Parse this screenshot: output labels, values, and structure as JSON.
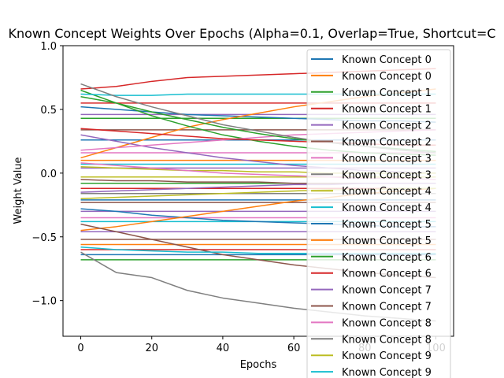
{
  "chart_data": {
    "type": "line",
    "title": "Known Concept Weights Over Epochs (Alpha=0.1, Overlap=True, Shortcut=C",
    "xlabel": "Epochs",
    "ylabel": "Weight Value",
    "xlim": [
      -5,
      105
    ],
    "ylim": [
      -1.28,
      1.0
    ],
    "xticks": [
      0,
      20,
      40,
      60,
      80,
      100
    ],
    "yticks": [
      -1.0,
      -0.5,
      0.0,
      0.5,
      1.0
    ],
    "ytick_labels": [
      "−1.0",
      "−0.5",
      "0.0",
      "0.5",
      "1.0"
    ],
    "grid": false,
    "legend_position": "top-right",
    "x": [
      0,
      10,
      20,
      30,
      40,
      50,
      60,
      70,
      80,
      90,
      100
    ],
    "series": [
      {
        "name": "Known Concept 0",
        "color": "#1f77b4",
        "values": [
          0.52,
          0.5,
          0.48,
          0.46,
          0.45,
          0.44,
          0.43,
          0.42,
          0.41,
          0.41,
          0.4
        ]
      },
      {
        "name": "Known Concept 0",
        "color": "#ff7f0e",
        "values": [
          0.12,
          0.2,
          0.28,
          0.36,
          0.42,
          0.47,
          0.52,
          0.56,
          0.6,
          0.63,
          0.66
        ]
      },
      {
        "name": "Known Concept 1",
        "color": "#2ca02c",
        "values": [
          0.65,
          0.55,
          0.45,
          0.37,
          0.3,
          0.25,
          0.21,
          0.18,
          0.16,
          0.15,
          0.14
        ]
      },
      {
        "name": "Known Concept 1",
        "color": "#d62728",
        "values": [
          0.66,
          0.68,
          0.72,
          0.75,
          0.76,
          0.77,
          0.78,
          0.79,
          0.8,
          0.81,
          0.82
        ]
      },
      {
        "name": "Known Concept 2",
        "color": "#9467bd",
        "values": [
          0.3,
          0.25,
          0.2,
          0.16,
          0.12,
          0.09,
          0.06,
          0.04,
          0.02,
          0.01,
          0.0
        ]
      },
      {
        "name": "Known Concept 2",
        "color": "#8c564b",
        "values": [
          -0.05,
          -0.06,
          -0.06,
          -0.07,
          -0.07,
          -0.07,
          -0.08,
          -0.08,
          -0.08,
          -0.08,
          -0.08
        ]
      },
      {
        "name": "Known Concept 3",
        "color": "#e377c2",
        "values": [
          0.18,
          0.2,
          0.22,
          0.24,
          0.26,
          0.28,
          0.3,
          0.31,
          0.32,
          0.33,
          0.34
        ]
      },
      {
        "name": "Known Concept 3",
        "color": "#7f7f7f",
        "values": [
          -0.62,
          -0.78,
          -0.82,
          -0.92,
          -0.98,
          -1.02,
          -1.06,
          -1.09,
          -1.12,
          -1.14,
          -1.16
        ]
      },
      {
        "name": "Known Concept 4",
        "color": "#bcbd22",
        "values": [
          0.05,
          0.04,
          0.03,
          0.02,
          0.02,
          0.01,
          0.01,
          0.0,
          0.0,
          0.0,
          0.0
        ]
      },
      {
        "name": "Known Concept 4",
        "color": "#17becf",
        "values": [
          0.62,
          0.61,
          0.61,
          0.62,
          0.62,
          0.62,
          0.62,
          0.62,
          0.62,
          0.62,
          0.62
        ]
      },
      {
        "name": "Known Concept 5",
        "color": "#1f77b4",
        "values": [
          -0.28,
          -0.3,
          -0.33,
          -0.35,
          -0.37,
          -0.38,
          -0.39,
          -0.4,
          -0.41,
          -0.42,
          -0.42
        ]
      },
      {
        "name": "Known Concept 5",
        "color": "#ff7f0e",
        "values": [
          -0.45,
          -0.42,
          -0.38,
          -0.34,
          -0.3,
          -0.26,
          -0.22,
          -0.19,
          -0.16,
          -0.14,
          -0.12
        ]
      },
      {
        "name": "Known Concept 6",
        "color": "#2ca02c",
        "values": [
          0.6,
          0.55,
          0.48,
          0.42,
          0.36,
          0.31,
          0.27,
          0.24,
          0.21,
          0.19,
          0.17
        ]
      },
      {
        "name": "Known Concept 6",
        "color": "#d62728",
        "values": [
          0.35,
          0.33,
          0.31,
          0.29,
          0.27,
          0.26,
          0.25,
          0.24,
          0.23,
          0.22,
          0.22
        ]
      },
      {
        "name": "Known Concept 7",
        "color": "#9467bd",
        "values": [
          -0.15,
          -0.14,
          -0.13,
          -0.12,
          -0.11,
          -0.1,
          -0.09,
          -0.09,
          -0.08,
          -0.08,
          -0.08
        ]
      },
      {
        "name": "Known Concept 7",
        "color": "#8c564b",
        "values": [
          -0.4,
          -0.46,
          -0.52,
          -0.58,
          -0.64,
          -0.68,
          -0.72,
          -0.75,
          -0.78,
          -0.8,
          -0.82
        ]
      },
      {
        "name": "Known Concept 8",
        "color": "#e377c2",
        "values": [
          0.08,
          0.06,
          0.04,
          0.02,
          0.0,
          -0.01,
          -0.02,
          -0.03,
          -0.04,
          -0.04,
          -0.05
        ]
      },
      {
        "name": "Known Concept 8",
        "color": "#7f7f7f",
        "values": [
          0.7,
          0.6,
          0.52,
          0.45,
          0.38,
          0.33,
          0.28,
          0.24,
          0.21,
          0.18,
          0.16
        ]
      },
      {
        "name": "Known Concept 9",
        "color": "#bcbd22",
        "values": [
          -0.2,
          -0.19,
          -0.18,
          -0.17,
          -0.16,
          -0.15,
          -0.14,
          -0.13,
          -0.13,
          -0.12,
          -0.12
        ]
      },
      {
        "name": "Known Concept 9",
        "color": "#17becf",
        "values": [
          -0.58,
          -0.6,
          -0.61,
          -0.62,
          -0.62,
          -0.63,
          -0.63,
          -0.63,
          -0.63,
          -0.63,
          -0.63
        ]
      }
    ],
    "constant_lines": [
      {
        "color": "#2ca02c",
        "value": -0.68
      },
      {
        "color": "#1f77b4",
        "value": -0.64
      },
      {
        "color": "#d62728",
        "value": -0.6
      },
      {
        "color": "#ff7f0e",
        "value": -0.56
      },
      {
        "color": "#8c564b",
        "value": -0.52
      },
      {
        "color": "#9467bd",
        "value": -0.46
      },
      {
        "color": "#17becf",
        "value": -0.38
      },
      {
        "color": "#e377c2",
        "value": -0.35
      },
      {
        "color": "#9467bd",
        "value": -0.3
      },
      {
        "color": "#8c564b",
        "value": -0.23
      },
      {
        "color": "#1f77b4",
        "value": -0.21
      },
      {
        "color": "#7f7f7f",
        "value": -0.16
      },
      {
        "color": "#d62728",
        "value": -0.12
      },
      {
        "color": "#2ca02c",
        "value": -0.08
      },
      {
        "color": "#bcbd22",
        "value": -0.03
      },
      {
        "color": "#9467bd",
        "value": 0.04
      },
      {
        "color": "#17becf",
        "value": 0.07
      },
      {
        "color": "#ff7f0e",
        "value": 0.1
      },
      {
        "color": "#e377c2",
        "value": 0.16
      },
      {
        "color": "#1f77b4",
        "value": 0.26
      },
      {
        "color": "#8c564b",
        "value": 0.34
      },
      {
        "color": "#2ca02c",
        "value": 0.43
      },
      {
        "color": "#9467bd",
        "value": 0.46
      },
      {
        "color": "#d62728",
        "value": 0.55
      }
    ]
  }
}
